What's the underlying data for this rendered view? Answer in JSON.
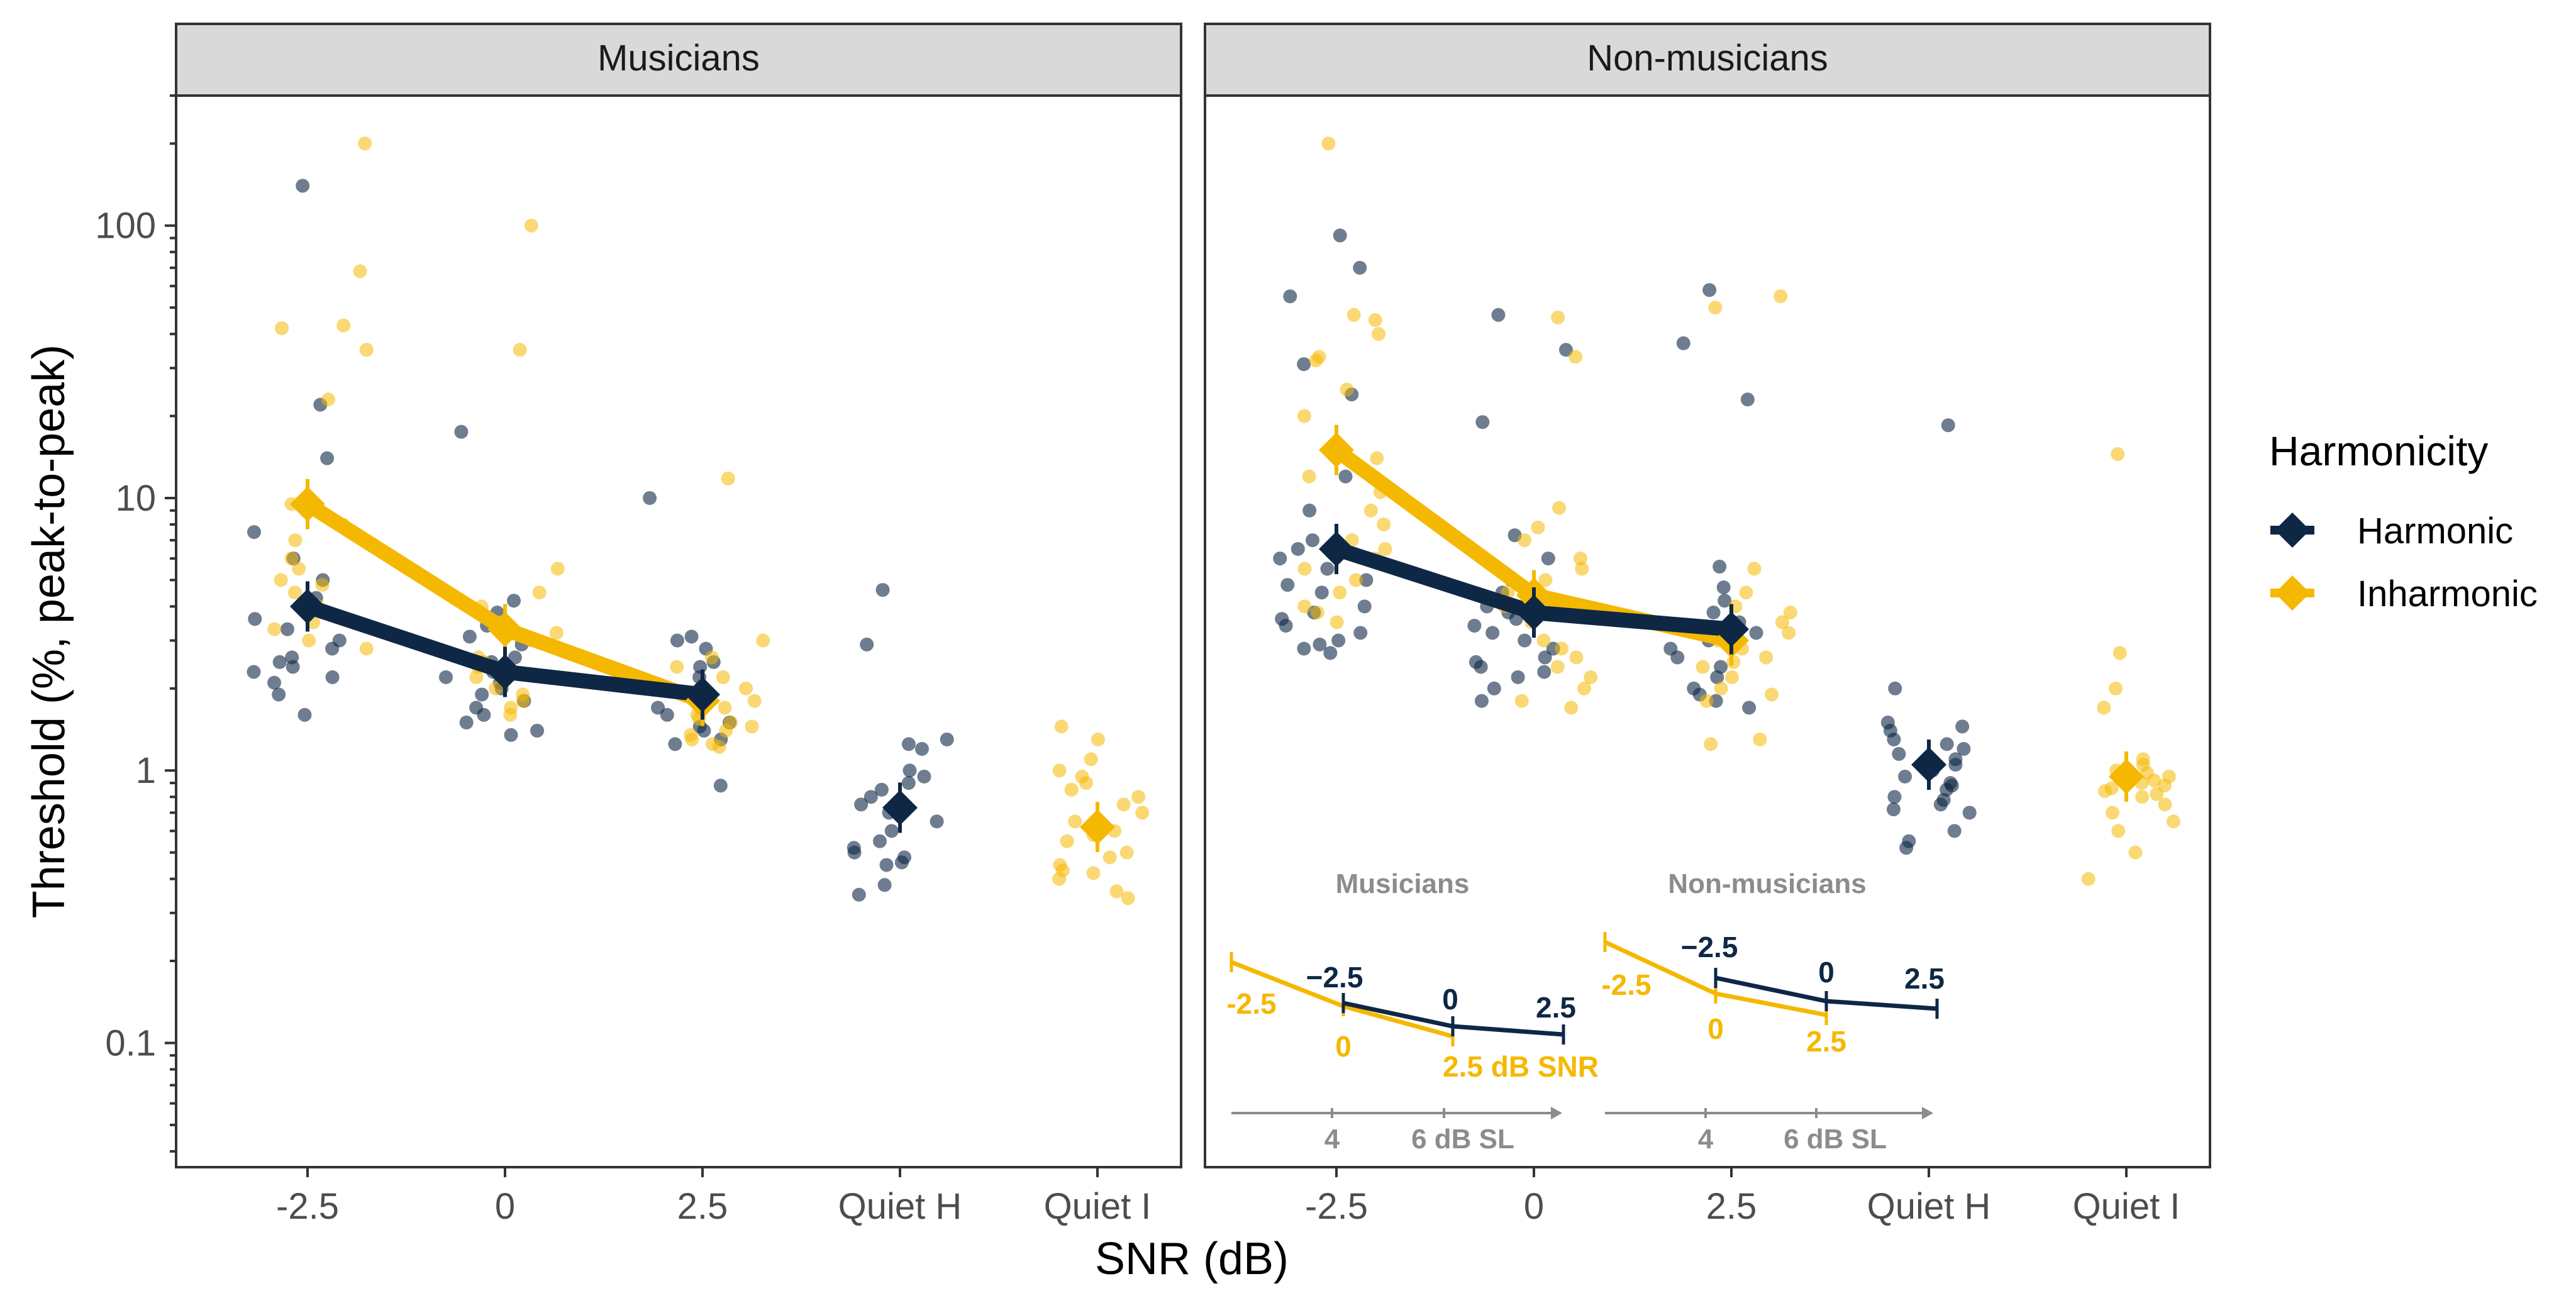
{
  "chart_data": {
    "type": "scatter",
    "y_axis": {
      "label": "Threshold (%, peak-to-peak)",
      "scale": "log10",
      "ylim": [
        0.035,
        300
      ],
      "ticks": [
        "0.1",
        "1",
        "10",
        "100"
      ]
    },
    "x_axis": {
      "label": "SNR (dB)",
      "categories": [
        "-2.5",
        "0",
        "2.5",
        "Quiet H",
        "Quiet I"
      ]
    },
    "legend": {
      "title": "Harmonicity",
      "entries": [
        "Harmonic",
        "Inharmonic"
      ],
      "position": "right"
    },
    "colors": {
      "Harmonic": "#0e2745",
      "Inharmonic": "#f5b800"
    },
    "panels": [
      {
        "title": "Musicians",
        "means": {
          "Harmonic": {
            "-2.5": 4.0,
            "0": 2.3,
            "2.5": 1.9,
            "Quiet H": 0.73
          },
          "Inharmonic": {
            "-2.5": 9.5,
            "0": 3.3,
            "2.5": 1.8,
            "Quiet I": 0.62
          }
        },
        "points": {
          "Harmonic": {
            "-2.5": [
              22,
              14,
              9.2,
              7.5,
              6.0,
              5.0,
              4.3,
              3.6,
              3.3,
              3.0,
              2.8,
              2.6,
              2.5,
              2.4,
              2.3,
              2.2,
              2.1,
              1.9,
              1.6,
              140
            ],
            "0": [
              17.5,
              4.2,
              3.8,
              3.4,
              3.1,
              2.9,
              2.6,
              2.5,
              2.4,
              2.3,
              2.2,
              2.1,
              2.0,
              1.9,
              1.8,
              1.7,
              1.6,
              1.5,
              1.4,
              1.35
            ],
            "2.5": [
              10,
              3.1,
              3.0,
              2.8,
              2.5,
              2.4,
              2.2,
              2.0,
              1.9,
              1.8,
              1.7,
              1.6,
              1.5,
              1.45,
              1.4,
              1.3,
              1.25,
              0.88
            ],
            "Quiet H": [
              4.6,
              2.9,
              1.3,
              1.25,
              1.2,
              1.0,
              0.95,
              0.9,
              0.85,
              0.8,
              0.75,
              0.7,
              0.65,
              0.6,
              0.55,
              0.52,
              0.5,
              0.48,
              0.46,
              0.45,
              0.38,
              0.35
            ]
          },
          "Inharmonic": {
            "-2.5": [
              200,
              68,
              43,
              42,
              35,
              23,
              9.5,
              8.0,
              7.0,
              6.0,
              5.5,
              5.0,
              4.8,
              4.5,
              4.0,
              3.5,
              3.3,
              3.0,
              2.8
            ],
            "0": [
              100,
              35,
              5.5,
              4.5,
              4.0,
              3.5,
              3.2,
              3.0,
              2.8,
              2.6,
              2.5,
              2.4,
              2.2,
              2.0,
              1.9,
              1.8,
              1.7,
              1.6
            ],
            "2.5": [
              11.8,
              3.0,
              2.6,
              2.4,
              2.2,
              2.0,
              1.8,
              1.7,
              1.6,
              1.55,
              1.5,
              1.45,
              1.4,
              1.35,
              1.3,
              1.25,
              1.22
            ],
            "Quiet I": [
              1.45,
              1.3,
              1.1,
              1.0,
              0.95,
              0.9,
              0.85,
              0.8,
              0.75,
              0.7,
              0.65,
              0.6,
              0.58,
              0.55,
              0.5,
              0.48,
              0.45,
              0.43,
              0.42,
              0.4,
              0.36,
              0.34
            ]
          }
        }
      },
      {
        "title": "Non-musicians",
        "means": {
          "Harmonic": {
            "-2.5": 6.5,
            "0": 3.8,
            "2.5": 3.3,
            "Quiet H": 1.05
          },
          "Inharmonic": {
            "-2.5": 15.0,
            "0": 4.4,
            "2.5": 3.0,
            "Quiet I": 0.95
          }
        },
        "points": {
          "Harmonic": {
            "-2.5": [
              92,
              70,
              55,
              31,
              24,
              12,
              9.0,
              7.0,
              6.5,
              6.0,
              5.5,
              5.0,
              4.8,
              4.5,
              4.0,
              3.8,
              3.6,
              3.4,
              3.2,
              3.0,
              2.9,
              2.8,
              2.7
            ],
            "0": [
              47,
              35,
              19,
              7.3,
              6.0,
              5.0,
              4.5,
              4.0,
              3.8,
              3.6,
              3.4,
              3.2,
              3.0,
              2.8,
              2.6,
              2.5,
              2.4,
              2.3,
              2.2,
              2.0,
              1.8
            ],
            "2.5": [
              58,
              37,
              23,
              5.6,
              4.7,
              4.2,
              3.8,
              3.5,
              3.2,
              3.0,
              2.8,
              2.6,
              2.4,
              2.2,
              2.0,
              1.9,
              1.8,
              1.7
            ],
            "Quiet H": [
              18.5,
              2.0,
              1.5,
              1.45,
              1.4,
              1.3,
              1.25,
              1.2,
              1.15,
              1.1,
              1.05,
              1.0,
              0.95,
              0.9,
              0.88,
              0.85,
              0.8,
              0.78,
              0.75,
              0.72,
              0.7,
              0.6,
              0.55,
              0.52
            ]
          },
          "Inharmonic": {
            "-2.5": [
              200,
              47,
              45,
              40,
              33,
              32,
              25,
              20,
              14,
              12,
              10.5,
              9.0,
              8.0,
              7.0,
              6.5,
              6.0,
              5.5,
              5.0,
              4.5,
              4.0,
              3.8,
              3.5
            ],
            "0": [
              46,
              33,
              9.2,
              7.8,
              7.0,
              6.0,
              5.5,
              5.0,
              4.5,
              4.0,
              3.5,
              3.0,
              2.8,
              2.6,
              2.4,
              2.2,
              2.0,
              1.8,
              1.7
            ],
            "2.5": [
              55,
              50,
              5.5,
              4.5,
              4.0,
              3.8,
              3.5,
              3.2,
              3.0,
              2.8,
              2.6,
              2.5,
              2.4,
              2.2,
              2.0,
              1.9,
              1.8,
              1.3,
              1.25
            ],
            "Quiet I": [
              14.5,
              2.7,
              2.0,
              1.7,
              1.1,
              1.05,
              1.0,
              0.98,
              0.95,
              0.92,
              0.9,
              0.88,
              0.86,
              0.84,
              0.82,
              0.8,
              0.75,
              0.7,
              0.65,
              0.6,
              0.5,
              0.4
            ]
          }
        }
      }
    ],
    "inset": {
      "panels": [
        {
          "title": "Musicians",
          "harmonic_labels": [
            "−2.5",
            "0",
            "2.5"
          ],
          "inharmonic_labels": [
            "-2.5",
            "0",
            "2.5 dB SNR"
          ],
          "sl_ticks": [
            "4",
            "6 dB SL"
          ]
        },
        {
          "title": "Non-musicians",
          "harmonic_labels": [
            "−2.5",
            "0",
            "2.5"
          ],
          "inharmonic_labels": [
            "-2.5",
            "0",
            "2.5"
          ],
          "sl_ticks": [
            "4",
            "6 dB SL"
          ]
        }
      ]
    }
  }
}
